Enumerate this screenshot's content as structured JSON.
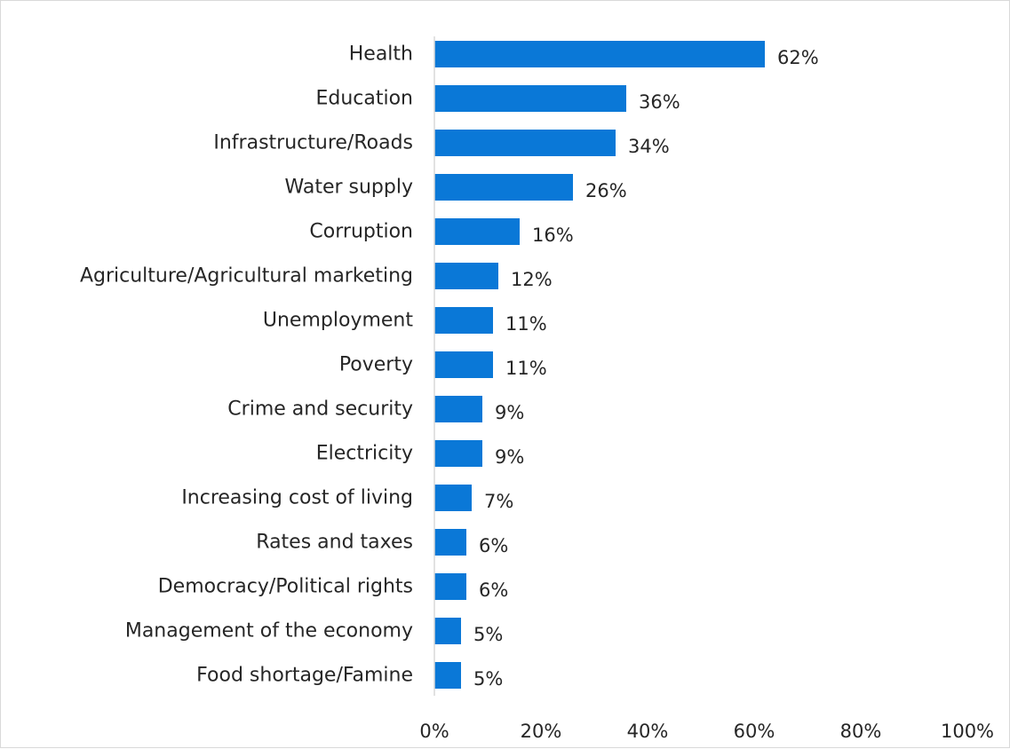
{
  "chart_data": {
    "type": "bar",
    "orientation": "horizontal",
    "categories": [
      "Health",
      "Education",
      "Infrastructure/Roads",
      "Water supply",
      "Corruption",
      "Agriculture/Agricultural marketing",
      "Unemployment",
      "Poverty",
      "Crime and security",
      "Electricity",
      "Increasing cost of living",
      "Rates and taxes",
      "Democracy/Political rights",
      "Management of the economy",
      "Food shortage/Famine"
    ],
    "values": [
      62,
      36,
      34,
      26,
      16,
      12,
      11,
      11,
      9,
      9,
      7,
      6,
      6,
      5,
      5
    ],
    "value_labels": [
      "62%",
      "36%",
      "34%",
      "26%",
      "16%",
      "12%",
      "11%",
      "11%",
      "9%",
      "9%",
      "7%",
      "6%",
      "6%",
      "5%",
      "5%"
    ],
    "x_ticks": [
      "0%",
      "20%",
      "40%",
      "60%",
      "80%",
      "100%"
    ],
    "xlim": [
      0,
      100
    ],
    "title": "",
    "xlabel": "",
    "ylabel": "",
    "grid": false,
    "legend": "none",
    "bar_color": "#0a78d7",
    "axis_color": "#d9d9d9",
    "text_color": "#262626"
  }
}
